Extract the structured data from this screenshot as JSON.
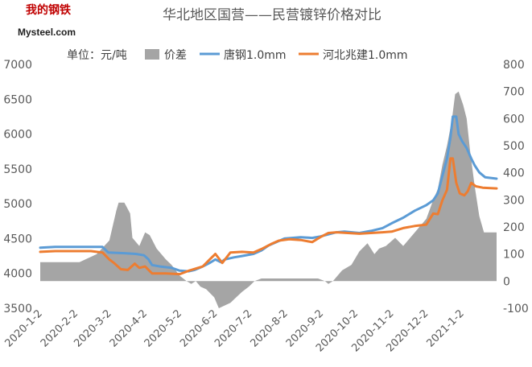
{
  "logo": {
    "top": "我的钢铁",
    "bottom": "Mysteel.com"
  },
  "chart_data": {
    "type": "line",
    "title": "华北地区国营——民营镀锌价格对比",
    "unit_label": "单位：元/吨",
    "xlim": [
      "2020-01-02",
      "2021-02-01"
    ],
    "ylim_left": [
      3500,
      7000
    ],
    "ylim_right": [
      -100,
      800
    ],
    "y_ticks_left": [
      3500,
      4000,
      4500,
      5000,
      5500,
      6000,
      6500,
      7000
    ],
    "y_ticks_right": [
      -100,
      0,
      100,
      200,
      300,
      400,
      500,
      600,
      700,
      800
    ],
    "x_tick_labels": [
      "2020-1-2",
      "2020-2-2",
      "2020-3-2",
      "2020-4-2",
      "2020-5-2",
      "2020-6-2",
      "2020-7-2",
      "2020-8-2",
      "2020-9-2",
      "2020-10-2",
      "2020-11-2",
      "2020-12-2",
      "2021-1-2"
    ],
    "legend_position": "top",
    "grid": false,
    "series": [
      {
        "name": "价差",
        "type": "area",
        "axis": "right",
        "color": "#a5a5a5",
        "points": [
          [
            "2020-01-02",
            70
          ],
          [
            "2020-02-05",
            70
          ],
          [
            "2020-02-20",
            100
          ],
          [
            "2020-03-02",
            150
          ],
          [
            "2020-03-08",
            260
          ],
          [
            "2020-03-10",
            290
          ],
          [
            "2020-03-15",
            290
          ],
          [
            "2020-03-20",
            250
          ],
          [
            "2020-03-22",
            160
          ],
          [
            "2020-03-28",
            130
          ],
          [
            "2020-04-02",
            180
          ],
          [
            "2020-04-06",
            170
          ],
          [
            "2020-04-12",
            120
          ],
          [
            "2020-04-20",
            80
          ],
          [
            "2020-04-25",
            60
          ],
          [
            "2020-05-02",
            20
          ],
          [
            "2020-05-08",
            0
          ],
          [
            "2020-05-12",
            -10
          ],
          [
            "2020-05-16",
            0
          ],
          [
            "2020-05-20",
            -20
          ],
          [
            "2020-05-25",
            -30
          ],
          [
            "2020-06-01",
            -60
          ],
          [
            "2020-06-05",
            -100
          ],
          [
            "2020-06-10",
            -90
          ],
          [
            "2020-06-15",
            -80
          ],
          [
            "2020-06-20",
            -60
          ],
          [
            "2020-06-25",
            -40
          ],
          [
            "2020-07-01",
            -20
          ],
          [
            "2020-07-06",
            0
          ],
          [
            "2020-07-12",
            10
          ],
          [
            "2020-07-20",
            10
          ],
          [
            "2020-08-01",
            10
          ],
          [
            "2020-08-15",
            10
          ],
          [
            "2020-08-30",
            10
          ],
          [
            "2020-09-05",
            0
          ],
          [
            "2020-09-08",
            -10
          ],
          [
            "2020-09-12",
            0
          ],
          [
            "2020-09-20",
            40
          ],
          [
            "2020-09-28",
            60
          ],
          [
            "2020-10-05",
            110
          ],
          [
            "2020-10-12",
            140
          ],
          [
            "2020-10-18",
            100
          ],
          [
            "2020-10-22",
            120
          ],
          [
            "2020-10-28",
            130
          ],
          [
            "2020-11-05",
            160
          ],
          [
            "2020-11-12",
            130
          ],
          [
            "2020-11-20",
            170
          ],
          [
            "2020-11-26",
            200
          ],
          [
            "2020-12-02",
            230
          ],
          [
            "2020-12-08",
            300
          ],
          [
            "2020-12-12",
            340
          ],
          [
            "2020-12-16",
            430
          ],
          [
            "2020-12-20",
            500
          ],
          [
            "2020-12-24",
            590
          ],
          [
            "2020-12-27",
            690
          ],
          [
            "2020-12-30",
            700
          ],
          [
            "2021-01-03",
            650
          ],
          [
            "2021-01-06",
            600
          ],
          [
            "2021-01-09",
            480
          ],
          [
            "2021-01-13",
            350
          ],
          [
            "2021-01-17",
            240
          ],
          [
            "2021-01-21",
            180
          ],
          [
            "2021-02-01",
            180
          ]
        ]
      },
      {
        "name": "唐钢1.0mm",
        "type": "line",
        "axis": "left",
        "color": "#5b9bd5",
        "points": [
          [
            "2020-01-02",
            4370
          ],
          [
            "2020-01-15",
            4380
          ],
          [
            "2020-02-25",
            4380
          ],
          [
            "2020-03-01",
            4300
          ],
          [
            "2020-03-15",
            4290
          ],
          [
            "2020-03-25",
            4280
          ],
          [
            "2020-04-01",
            4260
          ],
          [
            "2020-04-05",
            4200
          ],
          [
            "2020-04-08",
            4120
          ],
          [
            "2020-04-15",
            4100
          ],
          [
            "2020-04-25",
            4080
          ],
          [
            "2020-05-02",
            4040
          ],
          [
            "2020-05-10",
            4030
          ],
          [
            "2020-05-15",
            4050
          ],
          [
            "2020-05-22",
            4100
          ],
          [
            "2020-05-28",
            4150
          ],
          [
            "2020-06-02",
            4200
          ],
          [
            "2020-06-07",
            4160
          ],
          [
            "2020-06-10",
            4200
          ],
          [
            "2020-06-18",
            4230
          ],
          [
            "2020-06-25",
            4250
          ],
          [
            "2020-07-05",
            4280
          ],
          [
            "2020-07-12",
            4330
          ],
          [
            "2020-07-18",
            4400
          ],
          [
            "2020-07-25",
            4450
          ],
          [
            "2020-08-01",
            4500
          ],
          [
            "2020-08-15",
            4520
          ],
          [
            "2020-08-25",
            4510
          ],
          [
            "2020-09-01",
            4530
          ],
          [
            "2020-09-08",
            4560
          ],
          [
            "2020-09-15",
            4590
          ],
          [
            "2020-09-22",
            4600
          ],
          [
            "2020-10-05",
            4580
          ],
          [
            "2020-10-15",
            4610
          ],
          [
            "2020-10-25",
            4650
          ],
          [
            "2020-11-02",
            4720
          ],
          [
            "2020-11-12",
            4800
          ],
          [
            "2020-11-22",
            4900
          ],
          [
            "2020-12-02",
            4980
          ],
          [
            "2020-12-08",
            5050
          ],
          [
            "2020-12-12",
            5150
          ],
          [
            "2020-12-16",
            5400
          ],
          [
            "2020-12-20",
            5650
          ],
          [
            "2020-12-23",
            5950
          ],
          [
            "2020-12-25",
            6250
          ],
          [
            "2020-12-28",
            6250
          ],
          [
            "2020-12-30",
            6000
          ],
          [
            "2021-01-02",
            5900
          ],
          [
            "2021-01-06",
            5800
          ],
          [
            "2021-01-10",
            5650
          ],
          [
            "2021-01-13",
            5550
          ],
          [
            "2021-01-17",
            5450
          ],
          [
            "2021-01-22",
            5380
          ],
          [
            "2021-02-01",
            5360
          ]
        ]
      },
      {
        "name": "河北兆建1.0mm",
        "type": "line",
        "axis": "left",
        "color": "#ed7d31",
        "points": [
          [
            "2020-01-02",
            4310
          ],
          [
            "2020-01-15",
            4320
          ],
          [
            "2020-02-15",
            4320
          ],
          [
            "2020-02-25",
            4300
          ],
          [
            "2020-03-02",
            4200
          ],
          [
            "2020-03-06",
            4150
          ],
          [
            "2020-03-12",
            4060
          ],
          [
            "2020-03-18",
            4050
          ],
          [
            "2020-03-24",
            4140
          ],
          [
            "2020-03-28",
            4080
          ],
          [
            "2020-04-02",
            4100
          ],
          [
            "2020-04-08",
            4000
          ],
          [
            "2020-04-20",
            4000
          ],
          [
            "2020-05-02",
            3990
          ],
          [
            "2020-05-10",
            4040
          ],
          [
            "2020-05-16",
            4070
          ],
          [
            "2020-05-22",
            4100
          ],
          [
            "2020-05-28",
            4200
          ],
          [
            "2020-06-02",
            4280
          ],
          [
            "2020-06-08",
            4150
          ],
          [
            "2020-06-15",
            4300
          ],
          [
            "2020-06-25",
            4310
          ],
          [
            "2020-07-05",
            4300
          ],
          [
            "2020-07-12",
            4350
          ],
          [
            "2020-07-20",
            4420
          ],
          [
            "2020-07-27",
            4470
          ],
          [
            "2020-08-05",
            4490
          ],
          [
            "2020-08-15",
            4480
          ],
          [
            "2020-08-25",
            4450
          ],
          [
            "2020-09-01",
            4520
          ],
          [
            "2020-09-08",
            4580
          ],
          [
            "2020-09-15",
            4590
          ],
          [
            "2020-10-05",
            4570
          ],
          [
            "2020-10-15",
            4580
          ],
          [
            "2020-10-25",
            4590
          ],
          [
            "2020-11-02",
            4600
          ],
          [
            "2020-11-12",
            4650
          ],
          [
            "2020-11-22",
            4680
          ],
          [
            "2020-12-02",
            4700
          ],
          [
            "2020-12-08",
            4860
          ],
          [
            "2020-12-12",
            4850
          ],
          [
            "2020-12-16",
            5050
          ],
          [
            "2020-12-20",
            5200
          ],
          [
            "2020-12-23",
            5650
          ],
          [
            "2020-12-25",
            5650
          ],
          [
            "2020-12-28",
            5300
          ],
          [
            "2020-12-31",
            5150
          ],
          [
            "2021-01-04",
            5120
          ],
          [
            "2021-01-07",
            5180
          ],
          [
            "2021-01-10",
            5300
          ],
          [
            "2021-01-14",
            5250
          ],
          [
            "2021-01-20",
            5230
          ],
          [
            "2021-02-01",
            5220
          ]
        ]
      }
    ]
  }
}
